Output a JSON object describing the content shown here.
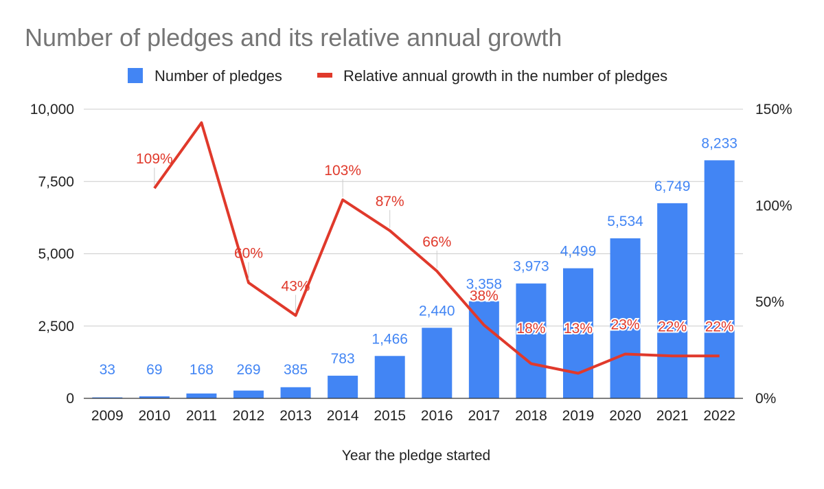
{
  "chart_data": {
    "type": "bar+line",
    "title": "Number of pledges and its relative annual growth",
    "xlabel": "Year the pledge started",
    "ylabel_left": "",
    "ylabel_right": "",
    "categories": [
      "2009",
      "2010",
      "2011",
      "2012",
      "2013",
      "2014",
      "2015",
      "2016",
      "2017",
      "2018",
      "2019",
      "2020",
      "2021",
      "2022"
    ],
    "series": [
      {
        "name": "Number of pledges",
        "type": "bar",
        "axis": "left",
        "color": "#4285f4",
        "values": [
          33,
          69,
          168,
          269,
          385,
          783,
          1466,
          2440,
          3358,
          3973,
          4499,
          5534,
          6749,
          8233
        ],
        "labels": [
          "33",
          "69",
          "168",
          "269",
          "385",
          "783",
          "1,466",
          "2,440",
          "3,358",
          "3,973",
          "4,499",
          "5,534",
          "6,749",
          "8,233"
        ]
      },
      {
        "name": "Relative annual growth in the number of pledges",
        "type": "line",
        "axis": "right",
        "color": "#e0392b",
        "values": [
          null,
          109,
          143,
          60,
          43,
          103,
          87,
          66,
          38,
          18,
          13,
          23,
          22,
          22
        ],
        "labels": [
          null,
          "109%",
          null,
          "60%",
          "43%",
          "103%",
          "87%",
          "66%",
          "38%",
          "18%",
          "13%",
          "23%",
          "22%",
          "22%"
        ]
      }
    ],
    "y_left": {
      "min": 0,
      "max": 10000,
      "ticks": [
        0,
        2500,
        5000,
        7500,
        10000
      ],
      "tick_labels": [
        "0",
        "2,500",
        "5,000",
        "7,500",
        "10,000"
      ]
    },
    "y_right": {
      "min": 0,
      "max": 150,
      "ticks": [
        0,
        50,
        100,
        150
      ],
      "tick_labels": [
        "0%",
        "50%",
        "100%",
        "150%"
      ]
    },
    "grid": true,
    "legend_position": "top"
  }
}
